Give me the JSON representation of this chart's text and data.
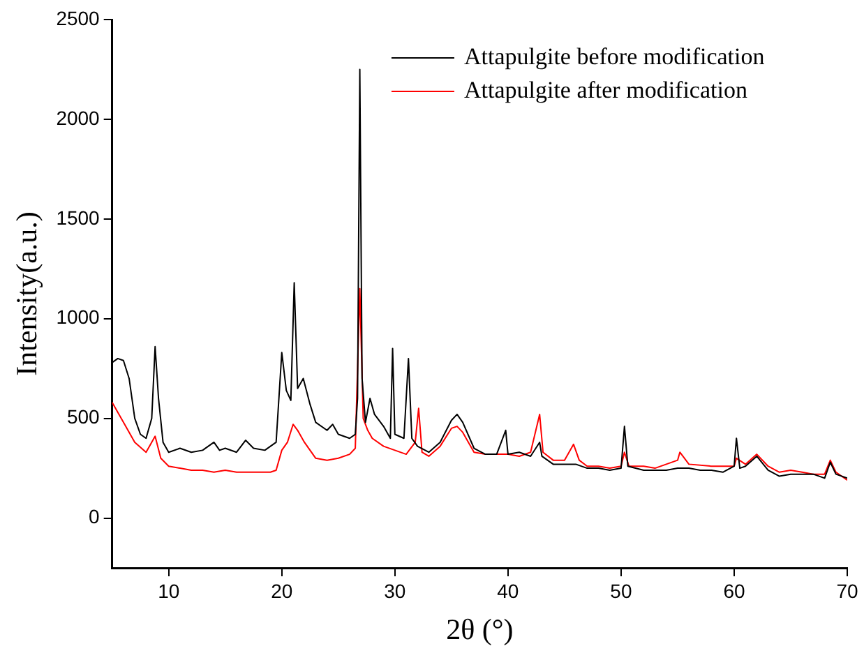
{
  "chart_data": {
    "type": "line",
    "xlabel": "2θ (°)",
    "ylabel": "Intensity(a.u.)",
    "xlim": [
      5,
      70
    ],
    "ylim": [
      -250,
      2500
    ],
    "xticks": [
      10,
      20,
      30,
      40,
      50,
      60,
      70
    ],
    "yticks": [
      0,
      500,
      1000,
      1500,
      2000,
      2500
    ],
    "grid": false,
    "legend": "top right",
    "marker": "none",
    "line_style": "solid",
    "series": [
      {
        "name": "Attapulgite before modification",
        "color": "#000000",
        "x": [
          5,
          5.5,
          6,
          6.5,
          7,
          7.5,
          8,
          8.5,
          8.8,
          9.1,
          9.5,
          10,
          11,
          12,
          13,
          14,
          14.5,
          15,
          16,
          16.8,
          17.5,
          18.5,
          19.5,
          20,
          20.4,
          20.8,
          21.1,
          21.4,
          21.9,
          22.5,
          23,
          24,
          24.5,
          25,
          26,
          26.5,
          26.7,
          26.9,
          27.1,
          27.4,
          27.8,
          28.2,
          29,
          29.6,
          29.8,
          30,
          30.8,
          31.2,
          31.5,
          32,
          33,
          34,
          35,
          35.5,
          36,
          37,
          38,
          39,
          39.8,
          40,
          41,
          42,
          42.8,
          43,
          44,
          45,
          46,
          47,
          48,
          49,
          50,
          50.3,
          50.6,
          52,
          53,
          54,
          55,
          56,
          57,
          58,
          59,
          60,
          60.2,
          60.5,
          61,
          62,
          63,
          64,
          65,
          66,
          67,
          68,
          68.5,
          69,
          70
        ],
        "values": [
          780,
          800,
          790,
          700,
          500,
          420,
          400,
          500,
          860,
          600,
          380,
          330,
          350,
          330,
          340,
          380,
          340,
          350,
          330,
          390,
          350,
          340,
          380,
          830,
          640,
          590,
          1180,
          650,
          700,
          570,
          480,
          440,
          470,
          420,
          400,
          420,
          600,
          2250,
          700,
          480,
          600,
          520,
          460,
          400,
          850,
          420,
          400,
          800,
          400,
          360,
          330,
          380,
          490,
          520,
          480,
          350,
          320,
          320,
          440,
          320,
          330,
          310,
          380,
          310,
          270,
          270,
          270,
          250,
          250,
          240,
          250,
          460,
          260,
          240,
          240,
          240,
          250,
          250,
          240,
          240,
          230,
          260,
          400,
          250,
          260,
          310,
          240,
          210,
          220,
          220,
          220,
          200,
          280,
          220,
          200
        ]
      },
      {
        "name": "Attapulgite after modification",
        "color": "#ff0000",
        "x": [
          5,
          5.5,
          6,
          7,
          8,
          8.8,
          9.3,
          10,
          11,
          12,
          13,
          14,
          15,
          16,
          17,
          18,
          19,
          19.5,
          20,
          20.5,
          21,
          21.4,
          22,
          23,
          24,
          25,
          26,
          26.5,
          26.9,
          27.2,
          27.6,
          28,
          29,
          30,
          31,
          31.8,
          32.1,
          32.4,
          33,
          34,
          35,
          35.5,
          36,
          37,
          38,
          39,
          40,
          41,
          42,
          42.8,
          43.1,
          44,
          45,
          45.8,
          46.3,
          47,
          48,
          49,
          50,
          50.3,
          50.7,
          52,
          53,
          55,
          55.2,
          56,
          58,
          60,
          60.2,
          61,
          62,
          63,
          64,
          65,
          66,
          67,
          68,
          68.5,
          69,
          70
        ],
        "values": [
          580,
          530,
          480,
          380,
          330,
          410,
          300,
          260,
          250,
          240,
          240,
          230,
          240,
          230,
          230,
          230,
          230,
          240,
          340,
          380,
          470,
          440,
          380,
          300,
          290,
          300,
          320,
          350,
          1150,
          500,
          440,
          400,
          360,
          340,
          320,
          380,
          550,
          330,
          310,
          360,
          450,
          460,
          430,
          330,
          320,
          320,
          320,
          310,
          330,
          520,
          330,
          290,
          290,
          370,
          290,
          260,
          260,
          250,
          260,
          330,
          260,
          260,
          250,
          290,
          330,
          270,
          260,
          260,
          300,
          270,
          320,
          260,
          230,
          240,
          230,
          220,
          220,
          290,
          230,
          190
        ]
      }
    ]
  }
}
